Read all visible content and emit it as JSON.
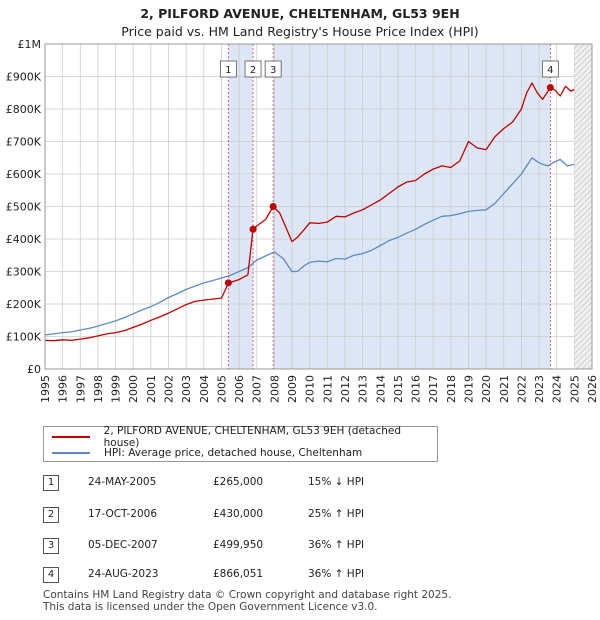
{
  "header": {
    "title": "2, PILFORD AVENUE, CHELTENHAM, GL53 9EH",
    "subtitle": "Price paid vs. HM Land Registry's House Price Index (HPI)"
  },
  "colors": {
    "price_line": "#c00000",
    "hpi_line": "#5b8bc9",
    "marker_line": "#d04060",
    "shade": "#dde6f4",
    "grid": "#cccccc"
  },
  "chart_data": {
    "type": "line",
    "xlim": [
      1995,
      2026
    ],
    "ylim": [
      0,
      1000000
    ],
    "x_ticks": [
      "1995",
      "1996",
      "1997",
      "1998",
      "1999",
      "2000",
      "2001",
      "2002",
      "2003",
      "2004",
      "2005",
      "2006",
      "2007",
      "2008",
      "2009",
      "2010",
      "2011",
      "2012",
      "2013",
      "2014",
      "2015",
      "2016",
      "2017",
      "2018",
      "2019",
      "2020",
      "2021",
      "2022",
      "2023",
      "2024",
      "2025",
      "2026"
    ],
    "y_ticks": [
      {
        "value": 0,
        "label": "£0"
      },
      {
        "value": 100000,
        "label": "£100K"
      },
      {
        "value": 200000,
        "label": "£200K"
      },
      {
        "value": 300000,
        "label": "£300K"
      },
      {
        "value": 400000,
        "label": "£400K"
      },
      {
        "value": 500000,
        "label": "£500K"
      },
      {
        "value": 600000,
        "label": "£600K"
      },
      {
        "value": 700000,
        "label": "£700K"
      },
      {
        "value": 800000,
        "label": "£800K"
      },
      {
        "value": 900000,
        "label": "£900K"
      },
      {
        "value": 1000000,
        "label": "£1M"
      }
    ],
    "future_region_start": 2025.0,
    "series": [
      {
        "name": "2, PILFORD AVENUE, CHELTENHAM, GL53 9EH (detached house)",
        "color": "#c00000",
        "x": [
          1995.0,
          1995.5,
          1996.0,
          1996.5,
          1997.0,
          1997.5,
          1998.0,
          1998.5,
          1999.0,
          1999.5,
          2000.0,
          2000.5,
          2001.0,
          2001.5,
          2002.0,
          2002.5,
          2003.0,
          2003.5,
          2004.0,
          2004.5,
          2005.0,
          2005.4,
          2005.7,
          2006.0,
          2006.5,
          2006.79,
          2007.0,
          2007.5,
          2007.93,
          2008.3,
          2008.7,
          2009.0,
          2009.3,
          2009.7,
          2010.0,
          2010.5,
          2011.0,
          2011.5,
          2012.0,
          2012.5,
          2013.0,
          2013.5,
          2014.0,
          2014.5,
          2015.0,
          2015.5,
          2016.0,
          2016.5,
          2017.0,
          2017.5,
          2018.0,
          2018.5,
          2019.0,
          2019.5,
          2020.0,
          2020.5,
          2021.0,
          2021.5,
          2022.0,
          2022.3,
          2022.6,
          2022.9,
          2023.2,
          2023.64,
          2023.9,
          2024.2,
          2024.5,
          2024.8,
          2025.0
        ],
        "values": [
          88000,
          87000,
          90000,
          88000,
          92000,
          96000,
          102000,
          108000,
          112000,
          118000,
          128000,
          138000,
          150000,
          160000,
          172000,
          185000,
          198000,
          208000,
          212000,
          215000,
          218000,
          265000,
          270000,
          275000,
          290000,
          430000,
          440000,
          460000,
          499950,
          480000,
          430000,
          392000,
          405000,
          430000,
          450000,
          448000,
          452000,
          470000,
          468000,
          480000,
          490000,
          505000,
          520000,
          540000,
          560000,
          575000,
          580000,
          600000,
          615000,
          625000,
          620000,
          640000,
          700000,
          680000,
          675000,
          715000,
          740000,
          760000,
          800000,
          850000,
          880000,
          850000,
          830000,
          866051,
          858000,
          840000,
          870000,
          855000,
          860000
        ]
      },
      {
        "name": "HPI: Average price, detached house, Cheltenham",
        "color": "#5b8bc9",
        "x": [
          1995.0,
          1995.5,
          1996.0,
          1996.5,
          1997.0,
          1997.5,
          1998.0,
          1998.5,
          1999.0,
          1999.5,
          2000.0,
          2000.5,
          2001.0,
          2001.5,
          2002.0,
          2002.5,
          2003.0,
          2003.5,
          2004.0,
          2004.5,
          2005.0,
          2005.5,
          2006.0,
          2006.5,
          2007.0,
          2007.5,
          2008.0,
          2008.5,
          2009.0,
          2009.3,
          2009.7,
          2010.0,
          2010.5,
          2011.0,
          2011.5,
          2012.0,
          2012.5,
          2013.0,
          2013.5,
          2014.0,
          2014.5,
          2015.0,
          2015.5,
          2016.0,
          2016.5,
          2017.0,
          2017.5,
          2018.0,
          2018.5,
          2019.0,
          2019.5,
          2020.0,
          2020.5,
          2021.0,
          2021.5,
          2022.0,
          2022.3,
          2022.6,
          2022.9,
          2023.2,
          2023.5,
          2023.8,
          2024.2,
          2024.6,
          2025.0
        ],
        "values": [
          105000,
          108000,
          112000,
          114000,
          120000,
          125000,
          132000,
          140000,
          148000,
          158000,
          170000,
          182000,
          192000,
          205000,
          220000,
          232000,
          245000,
          255000,
          265000,
          272000,
          280000,
          288000,
          300000,
          312000,
          335000,
          348000,
          360000,
          340000,
          300000,
          300000,
          318000,
          328000,
          332000,
          330000,
          340000,
          338000,
          350000,
          355000,
          365000,
          380000,
          395000,
          405000,
          418000,
          430000,
          445000,
          458000,
          470000,
          472000,
          478000,
          485000,
          488000,
          490000,
          510000,
          540000,
          570000,
          600000,
          625000,
          650000,
          638000,
          630000,
          625000,
          635000,
          645000,
          625000,
          630000
        ]
      }
    ],
    "transactions": [
      {
        "num": "1",
        "x": 2005.39,
        "value": 265000,
        "date": "24-MAY-2005",
        "price": "£265,000",
        "hpi": "15% ↓ HPI"
      },
      {
        "num": "2",
        "x": 2006.79,
        "value": 430000,
        "date": "17-OCT-2006",
        "price": "£430,000",
        "hpi": "25% ↑ HPI"
      },
      {
        "num": "3",
        "x": 2007.93,
        "value": 499950,
        "date": "05-DEC-2007",
        "price": "£499,950",
        "hpi": "36% ↑ HPI"
      },
      {
        "num": "4",
        "x": 2023.64,
        "value": 866051,
        "date": "24-AUG-2023",
        "price": "£866,051",
        "hpi": "36% ↑ HPI"
      }
    ]
  },
  "legend": {
    "price_label": "2, PILFORD AVENUE, CHELTENHAM, GL53 9EH (detached house)",
    "hpi_label": "HPI: Average price, detached house, Cheltenham"
  },
  "footer": {
    "line1": "Contains HM Land Registry data © Crown copyright and database right 2025.",
    "line2": "This data is licensed under the Open Government Licence v3.0."
  }
}
